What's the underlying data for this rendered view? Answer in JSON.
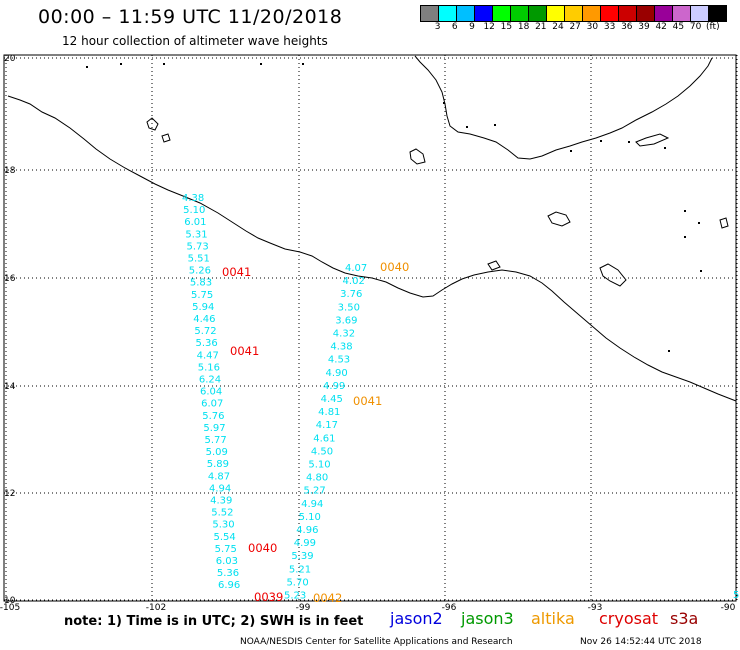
{
  "header": {
    "title": "00:00 – 11:59 UTC 11/20/2018",
    "subtitle": "12 hour collection of altimeter wave heights"
  },
  "scale": {
    "colors": [
      "#7f7f7f",
      "#00ffff",
      "#00bfff",
      "#0000ff",
      "#00ff00",
      "#00cc00",
      "#009900",
      "#ffff00",
      "#ffcc00",
      "#ff9900",
      "#ff0000",
      "#cc0000",
      "#990000",
      "#990099",
      "#cc66cc",
      "#ccccff",
      "#000000"
    ],
    "labels": [
      "3",
      "6",
      "9",
      "12",
      "15",
      "18",
      "21",
      "24",
      "27",
      "30",
      "33",
      "36",
      "39",
      "42",
      "45",
      "70",
      "(ft)"
    ]
  },
  "axes": {
    "lat_labels": [
      "20",
      "18",
      "16",
      "14",
      "12",
      "10"
    ],
    "lon_labels": [
      "-105",
      "-102",
      "-99",
      "-96",
      "-93",
      "-90"
    ]
  },
  "tracks": {
    "cyan_color": "#00e0f0",
    "red_color": "#ee0000",
    "orange_color": "#f09000",
    "left_track_values": [
      "4.38",
      "5.10",
      "6.01",
      "5.31",
      "5.73",
      "5.51",
      "5.26",
      "5.83",
      "5.75",
      "5.94",
      "4.46",
      "5.72",
      "5.36",
      "4.47",
      "5.16",
      "6.24",
      "6.04",
      "6.07",
      "5.76",
      "5.97",
      "5.77",
      "5.09",
      "5.89",
      "4.87",
      "4.94",
      "4.39",
      "5.52",
      "5.30",
      "5.54",
      "5.75",
      "6.03",
      "5.36",
      "6.96"
    ],
    "right_track_values": [
      "4.07",
      "4.02",
      "3.76",
      "3.50",
      "3.69",
      "4.32",
      "4.38",
      "4.53",
      "4.90",
      "4.99",
      "4.45",
      "4.81",
      "4.17",
      "4.61",
      "4.50",
      "5.10",
      "4.80",
      "5.27",
      "4.94",
      "5.10",
      "4.96",
      "4.99",
      "5.39",
      "5.21",
      "5.70",
      "5.23"
    ],
    "edge_value": "5",
    "time_labels": [
      {
        "text": "0041",
        "color": "red"
      },
      {
        "text": "0041",
        "color": "red"
      },
      {
        "text": "0040",
        "color": "red"
      },
      {
        "text": "0039",
        "color": "red"
      },
      {
        "text": "0040",
        "color": "orange"
      },
      {
        "text": "0041",
        "color": "orange"
      },
      {
        "text": "0042",
        "color": "orange"
      }
    ]
  },
  "footer": {
    "note": "note: 1) Time is in UTC; 2) SWH is in feet",
    "legend": [
      {
        "text": "jason2",
        "color": "#0000dd"
      },
      {
        "text": "jason3",
        "color": "#009900"
      },
      {
        "text": "altika",
        "color": "#ee9900"
      },
      {
        "text": "cryosat",
        "color": "#dd0000"
      },
      {
        "text": "s3a",
        "color": "#990000"
      }
    ],
    "credit": "NOAA/NESDIS Center for Satellite Applications and Research",
    "timestamp": "Nov 26 14:52:44 UTC 2018"
  }
}
